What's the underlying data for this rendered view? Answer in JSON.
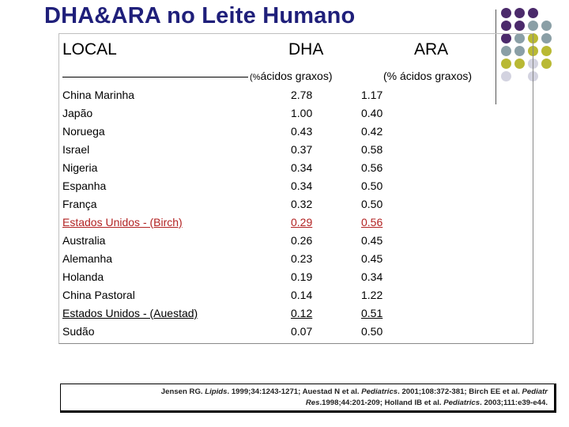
{
  "title": "DHA&ARA no Leite Humano",
  "headers": {
    "local": "LOCAL",
    "dha": "DHA",
    "ara": "ARA",
    "dha_unit_prefix": "(%",
    "dha_unit_rest": "ácidos graxos)",
    "ara_unit": "(% ácidos graxos)"
  },
  "rows": [
    {
      "country": "China Marinha",
      "dha": "2.78",
      "ara": "1.17",
      "style": "normal"
    },
    {
      "country": "Japão",
      "dha": "1.00",
      "ara": "0.40",
      "style": "normal"
    },
    {
      "country": "Noruega",
      "dha": "0.43",
      "ara": "0.42",
      "style": "normal"
    },
    {
      "country": "Israel",
      "dha": "0.37",
      "ara": "0.58",
      "style": "normal"
    },
    {
      "country": "Nigeria",
      "dha": "0.34",
      "ara": "0.56",
      "style": "normal"
    },
    {
      "country": "Espanha",
      "dha": "0.34",
      "ara": "0.50",
      "style": "normal"
    },
    {
      "country": "França",
      "dha": "0.32",
      "ara": "0.50",
      "style": "normal"
    },
    {
      "country": "Estados Unidos - (Birch)",
      "dha": "0.29",
      "ara": "0.56",
      "style": "highlight"
    },
    {
      "country": "Australia",
      "dha": "0.26",
      "ara": "0.45",
      "style": "normal"
    },
    {
      "country": "Alemanha",
      "dha": "0.23",
      "ara": "0.45",
      "style": "normal"
    },
    {
      "country": "Holanda",
      "dha": "0.19",
      "ara": "0.34",
      "style": "normal"
    },
    {
      "country": "China Pastoral",
      "dha": "0.14",
      "ara": "1.22",
      "style": "normal"
    },
    {
      "country": "Estados Unidos - (Auestad)",
      "dha": "0.12",
      "ara": "0.51",
      "style": "underline"
    },
    {
      "country": "Sudão",
      "dha": "0.07",
      "ara": "0.50",
      "style": "normal"
    }
  ],
  "reference": {
    "l1_a": "Jensen RG. ",
    "l1_b": "Lipids",
    "l1_c": ". 1999;34:1243-1271; Auestad N et al. ",
    "l1_d": "Pediatrics",
    "l1_e": ". 2001;108:372-381; Birch EE et al. ",
    "l1_f": "Pediatr",
    "l2_a": "Res",
    "l2_b": ".1998;44:201-209; Holland IB et al. ",
    "l2_c": "Pediatrics",
    "l2_d": ". 2003;111:e39-e44."
  },
  "decor": {
    "purple": "#4b2a6b",
    "gray_blue": "#8a9fa6",
    "olive": "#b9b934",
    "light": "#d3d3e0"
  }
}
